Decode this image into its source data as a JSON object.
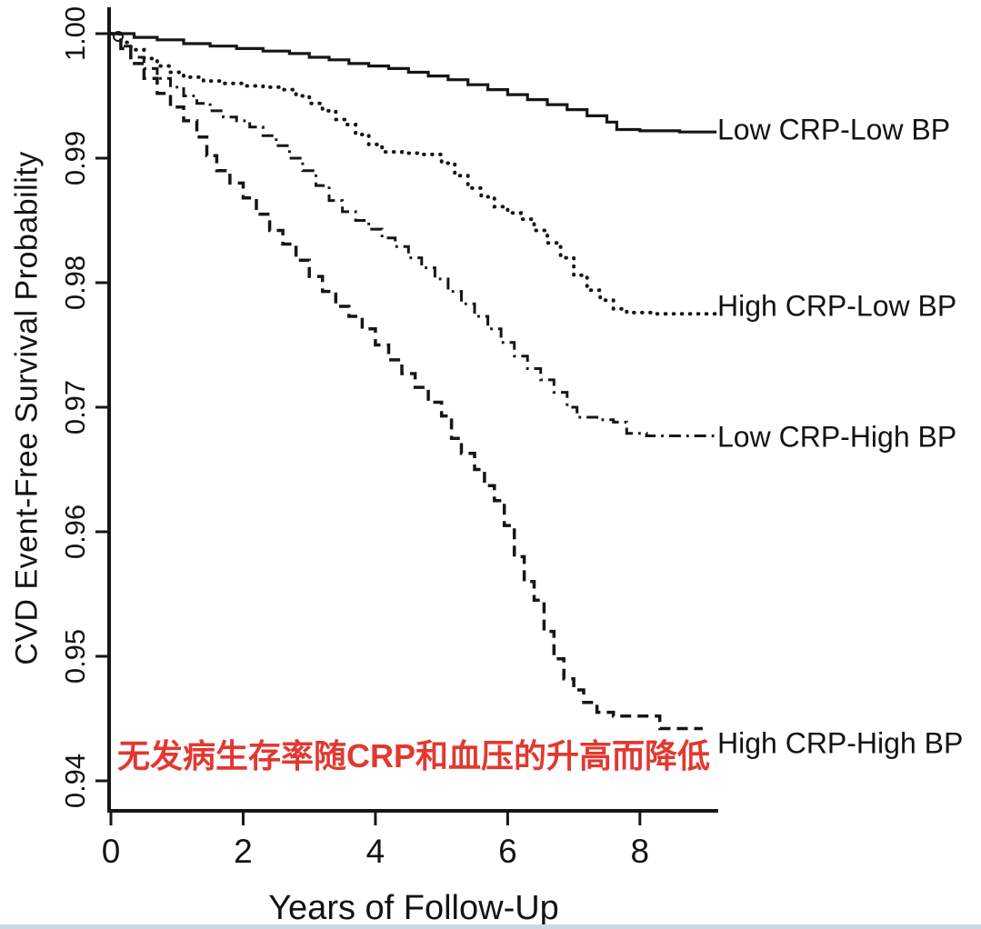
{
  "chart_data": {
    "type": "line",
    "subtype": "kaplan-meier-step",
    "title": "",
    "xlabel": "Years of Follow-Up",
    "ylabel": "CVD Event-Free Survival Probability",
    "xlim": [
      0,
      9.2
    ],
    "ylim": [
      0.938,
      1.002
    ],
    "grid": false,
    "legend_position": "right-outside-at-curve-ends",
    "x_ticks": [
      0,
      2,
      4,
      6,
      8
    ],
    "x_tick_labels": [
      "0",
      "2",
      "4",
      "6",
      "8"
    ],
    "y_ticks": [
      1.0,
      0.99,
      0.98,
      0.97,
      0.96,
      0.95,
      0.94
    ],
    "y_tick_labels": [
      "1.00",
      "0.99",
      "0.98",
      "0.97",
      "0.96",
      "0.95",
      "0.94"
    ],
    "line_color": "#161616",
    "annotation": {
      "text": "无发病生存率随CRP和血压的升高而降低",
      "color": "#e23830"
    },
    "series": [
      {
        "name": "Low CRP-Low BP",
        "line_style": "solid",
        "end_value": 0.992,
        "points": [
          [
            0,
            1
          ],
          [
            0.35,
            0.9997
          ],
          [
            0.7,
            0.9995
          ],
          [
            1.1,
            0.9992
          ],
          [
            1.5,
            0.999
          ],
          [
            1.9,
            0.9988
          ],
          [
            2.3,
            0.9986
          ],
          [
            2.7,
            0.9984
          ],
          [
            3,
            0.9981
          ],
          [
            3.3,
            0.9979
          ],
          [
            3.6,
            0.9976
          ],
          [
            3.9,
            0.9974
          ],
          [
            4.2,
            0.9972
          ],
          [
            4.5,
            0.9969
          ],
          [
            4.8,
            0.9966
          ],
          [
            5.1,
            0.9963
          ],
          [
            5.4,
            0.9959
          ],
          [
            5.7,
            0.9955
          ],
          [
            6,
            0.9951
          ],
          [
            6.3,
            0.9947
          ],
          [
            6.6,
            0.9943
          ],
          [
            6.9,
            0.9939
          ],
          [
            7.2,
            0.9934
          ],
          [
            7.5,
            0.9929
          ],
          [
            7.65,
            0.9923
          ],
          [
            8,
            0.9922
          ],
          [
            8.6,
            0.9921
          ],
          [
            9.16,
            0.9921
          ]
        ]
      },
      {
        "name": "High CRP-Low BP",
        "line_style": "dotted",
        "end_value": 0.9775,
        "points": [
          [
            0,
            1
          ],
          [
            0.15,
            0.9993
          ],
          [
            0.3,
            0.9987
          ],
          [
            0.5,
            0.998
          ],
          [
            0.7,
            0.9974
          ],
          [
            0.9,
            0.9969
          ],
          [
            1.1,
            0.9965
          ],
          [
            1.4,
            0.9962
          ],
          [
            1.7,
            0.996
          ],
          [
            2,
            0.9958
          ],
          [
            2.3,
            0.9957
          ],
          [
            2.6,
            0.9955
          ],
          [
            2.8,
            0.995
          ],
          [
            3,
            0.9944
          ],
          [
            3.2,
            0.9938
          ],
          [
            3.4,
            0.9931
          ],
          [
            3.55,
            0.9927
          ],
          [
            3.7,
            0.9919
          ],
          [
            3.9,
            0.9911
          ],
          [
            4.1,
            0.9905
          ],
          [
            4.4,
            0.9904
          ],
          [
            4.7,
            0.9903
          ],
          [
            5,
            0.9896
          ],
          [
            5.2,
            0.9886
          ],
          [
            5.4,
            0.9876
          ],
          [
            5.6,
            0.9869
          ],
          [
            5.8,
            0.9861
          ],
          [
            6,
            0.9856
          ],
          [
            6.2,
            0.9851
          ],
          [
            6.4,
            0.9842
          ],
          [
            6.6,
            0.9832
          ],
          [
            6.8,
            0.982
          ],
          [
            7,
            0.9806
          ],
          [
            7.2,
            0.9794
          ],
          [
            7.4,
            0.9786
          ],
          [
            7.6,
            0.9779
          ],
          [
            7.8,
            0.9776
          ],
          [
            8.2,
            0.9775
          ],
          [
            9.16,
            0.9774
          ]
        ]
      },
      {
        "name": "Low CRP-High BP",
        "line_style": "dashdot",
        "end_value": 0.9676,
        "points": [
          [
            0,
            1
          ],
          [
            0.15,
            0.999
          ],
          [
            0.3,
            0.9981
          ],
          [
            0.5,
            0.9972
          ],
          [
            0.7,
            0.9964
          ],
          [
            0.9,
            0.9957
          ],
          [
            1.1,
            0.995
          ],
          [
            1.3,
            0.9944
          ],
          [
            1.5,
            0.9938
          ],
          [
            1.7,
            0.9933
          ],
          [
            1.9,
            0.993
          ],
          [
            2.1,
            0.9925
          ],
          [
            2.3,
            0.9918
          ],
          [
            2.5,
            0.991
          ],
          [
            2.7,
            0.99
          ],
          [
            2.9,
            0.989
          ],
          [
            3.1,
            0.9878
          ],
          [
            3.3,
            0.9866
          ],
          [
            3.5,
            0.9857
          ],
          [
            3.7,
            0.985
          ],
          [
            3.9,
            0.9843
          ],
          [
            4.1,
            0.9836
          ],
          [
            4.3,
            0.9829
          ],
          [
            4.5,
            0.982
          ],
          [
            4.7,
            0.9812
          ],
          [
            4.9,
            0.9803
          ],
          [
            5.1,
            0.9793
          ],
          [
            5.3,
            0.9783
          ],
          [
            5.5,
            0.9773
          ],
          [
            5.7,
            0.9763
          ],
          [
            5.9,
            0.9752
          ],
          [
            6.1,
            0.9741
          ],
          [
            6.3,
            0.9731
          ],
          [
            6.5,
            0.9722
          ],
          [
            6.7,
            0.9712
          ],
          [
            6.9,
            0.97
          ],
          [
            7.05,
            0.9692
          ],
          [
            7.35,
            0.969
          ],
          [
            7.6,
            0.9688
          ],
          [
            7.8,
            0.9679
          ],
          [
            8.1,
            0.9677
          ],
          [
            9.16,
            0.9676
          ]
        ]
      },
      {
        "name": "High CRP-High BP",
        "line_style": "dashed",
        "end_value": 0.9442,
        "points": [
          [
            0,
            1
          ],
          [
            0.15,
            0.9988
          ],
          [
            0.3,
            0.9976
          ],
          [
            0.5,
            0.9964
          ],
          [
            0.7,
            0.9952
          ],
          [
            0.9,
            0.9941
          ],
          [
            1.1,
            0.993
          ],
          [
            1.3,
            0.9917
          ],
          [
            1.45,
            0.9902
          ],
          [
            1.6,
            0.989
          ],
          [
            1.8,
            0.988
          ],
          [
            2,
            0.9868
          ],
          [
            2.2,
            0.9855
          ],
          [
            2.4,
            0.9842
          ],
          [
            2.6,
            0.9831
          ],
          [
            2.8,
            0.9818
          ],
          [
            3,
            0.9805
          ],
          [
            3.2,
            0.9793
          ],
          [
            3.4,
            0.9781
          ],
          [
            3.6,
            0.9773
          ],
          [
            3.8,
            0.9763
          ],
          [
            4,
            0.975
          ],
          [
            4.2,
            0.9738
          ],
          [
            4.4,
            0.9727
          ],
          [
            4.6,
            0.9716
          ],
          [
            4.8,
            0.9704
          ],
          [
            5,
            0.9693
          ],
          [
            5.15,
            0.9675
          ],
          [
            5.3,
            0.9663
          ],
          [
            5.5,
            0.965
          ],
          [
            5.65,
            0.9637
          ],
          [
            5.8,
            0.9625
          ],
          [
            5.95,
            0.9605
          ],
          [
            6.1,
            0.958
          ],
          [
            6.25,
            0.956
          ],
          [
            6.4,
            0.9545
          ],
          [
            6.55,
            0.952
          ],
          [
            6.7,
            0.9498
          ],
          [
            6.85,
            0.9482
          ],
          [
            7,
            0.9473
          ],
          [
            7.15,
            0.9463
          ],
          [
            7.35,
            0.9455
          ],
          [
            7.6,
            0.9452
          ],
          [
            8.3,
            0.9442
          ],
          [
            8.95,
            0.9442
          ]
        ]
      }
    ]
  }
}
